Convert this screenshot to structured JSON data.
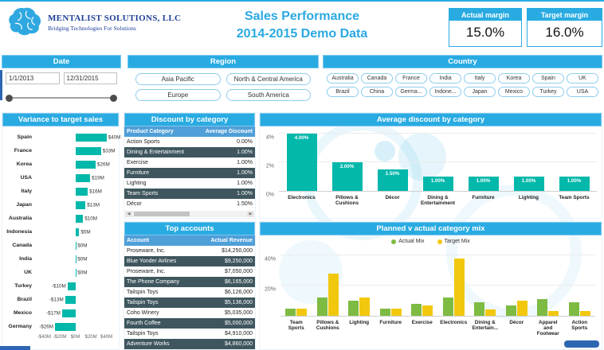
{
  "colors": {
    "accent": "#29ABE2",
    "title-blue": "#2BA9E1",
    "brand-navy": "#1C3E95",
    "teal": "#01B8AA",
    "table-header-blue": "#4F9FD8",
    "dark-row": "#3F565E",
    "actual-green": "#7DBB42",
    "target-yellow": "#F2C80F",
    "scroll-navy": "#2D66B1"
  },
  "branding": {
    "company": "MENTALIST SOLUTIONS, LLC",
    "tagline": "Bridging Technologies For Solutions"
  },
  "title": {
    "line1": "Sales Performance",
    "line2": "2014-2015 Demo Data"
  },
  "kpis": [
    {
      "label": "Actual margin",
      "value": "15.0%"
    },
    {
      "label": "Target margin",
      "value": "16.0%"
    }
  ],
  "filters": {
    "date": {
      "title": "Date",
      "start": "1/1/2013",
      "end": "12/31/2015"
    },
    "region": {
      "title": "Region",
      "options": [
        "Asia Pacific",
        "North & Central America",
        "Europe",
        "South America"
      ]
    },
    "country": {
      "title": "Country",
      "rows": [
        [
          "Australia",
          "Canada",
          "France",
          "India",
          "Italy",
          "Korea",
          "Spain",
          "UK"
        ],
        [
          "Brazil",
          "China",
          "Germa...",
          "Indone...",
          "Japan",
          "Mexico",
          "Turkey",
          "USA"
        ]
      ]
    }
  },
  "charts": {
    "variance": {
      "title": "Variance to target sales",
      "type": "bar",
      "rows": [
        {
          "country": "Spain",
          "value": 40,
          "label": "$40M"
        },
        {
          "country": "France",
          "value": 33,
          "label": "$33M"
        },
        {
          "country": "Korea",
          "value": 26,
          "label": "$26M"
        },
        {
          "country": "USA",
          "value": 19,
          "label": "$19M"
        },
        {
          "country": "Italy",
          "value": 16,
          "label": "$16M"
        },
        {
          "country": "Japan",
          "value": 13,
          "label": "$13M"
        },
        {
          "country": "Australia",
          "value": 10,
          "label": "$10M"
        },
        {
          "country": "Indonesia",
          "value": 5,
          "label": "$5M"
        },
        {
          "country": "Canada",
          "value": 0,
          "label": "$0M"
        },
        {
          "country": "India",
          "value": 0,
          "label": "$0M"
        },
        {
          "country": "UK",
          "value": 0,
          "label": "$0M"
        },
        {
          "country": "Turkey",
          "value": -10,
          "label": "-$10M"
        },
        {
          "country": "Brazil",
          "value": -13,
          "label": "-$13M"
        },
        {
          "country": "Mexico",
          "value": -17,
          "label": "-$17M"
        },
        {
          "country": "Germany",
          "value": -26,
          "label": "-$26M"
        }
      ],
      "axis_ticks": [
        {
          "label": "-$40M",
          "value": -40
        },
        {
          "label": "-$20M",
          "value": -20
        },
        {
          "label": "$0M",
          "value": 0
        },
        {
          "label": "$20M",
          "value": 20
        },
        {
          "label": "$40M",
          "value": 40
        }
      ]
    },
    "discount_table": {
      "title": "Discount by category",
      "columns": [
        "Product Category",
        "Average Discount"
      ],
      "rows": [
        [
          "Action Sports",
          "0.00%"
        ],
        [
          "Dining & Entertainment",
          "1.00%"
        ],
        [
          "Exercise",
          "1.00%"
        ],
        [
          "Furniture",
          "1.00%"
        ],
        [
          "Lighting",
          "1.00%"
        ],
        [
          "Team Sports",
          "1.00%"
        ],
        [
          "Décor",
          "1.50%"
        ]
      ]
    },
    "avg_discount": {
      "title": "Average discount by category",
      "type": "bar",
      "points": [
        {
          "category": "Electronics",
          "value": 4.0,
          "label": "4.00%"
        },
        {
          "category": "Pillows & Cushions",
          "value": 2.0,
          "label": "2.00%"
        },
        {
          "category": "Décor",
          "value": 1.5,
          "label": "1.50%"
        },
        {
          "category": "Dining & Entertainment",
          "value": 1.0,
          "label": "1.00%"
        },
        {
          "category": "Furniture",
          "value": 1.0,
          "label": "1.00%"
        },
        {
          "category": "Lighting",
          "value": 1.0,
          "label": "1.00%"
        },
        {
          "category": "Team Sports",
          "value": 1.0,
          "label": "1.00%"
        }
      ],
      "y_ticks": [
        {
          "label": "4%",
          "value": 4
        },
        {
          "label": "2%",
          "value": 2
        },
        {
          "label": "0%",
          "value": 0
        }
      ]
    },
    "top_accounts": {
      "title": "Top accounts",
      "columns": [
        "Account",
        "Actual Revenue"
      ],
      "rows": [
        [
          "Proseware, Inc.",
          "$14,250,000"
        ],
        [
          "Blue Yonder Airlines",
          "$9,250,000"
        ],
        [
          "Proseware, Inc.",
          "$7,050,000"
        ],
        [
          "The Phone Company",
          "$6,165,000"
        ],
        [
          "Tailspin Toys",
          "$6,126,000"
        ],
        [
          "Tailspin Toys",
          "$5,136,000"
        ],
        [
          "Coho Winery",
          "$5,035,000"
        ],
        [
          "Fourth Coffee",
          "$5,000,000"
        ],
        [
          "Tailspin Toys",
          "$4,910,000"
        ],
        [
          "Adventure Works",
          "$4,860,000"
        ]
      ]
    },
    "category_mix": {
      "title": "Planned v actual category mix",
      "type": "bar",
      "categories": [
        "Team Sports",
        "Pillows & Cushions",
        "Lighting",
        "Furniture",
        "Exercise",
        "Electronics",
        "Dining & Entertain...",
        "Décor",
        "Apparel and Footwear",
        "Action Sports"
      ],
      "series": [
        {
          "name": "Actual Mix",
          "color": "#7DBB42",
          "values": [
            5,
            12,
            10,
            5,
            8,
            12,
            9,
            7,
            11,
            9
          ]
        },
        {
          "name": "Target Mix",
          "color": "#F2C80F",
          "values": [
            5,
            28,
            12,
            5,
            7,
            38,
            4,
            10,
            3,
            3
          ]
        }
      ],
      "y_ticks": [
        {
          "label": "40%",
          "value": 40
        },
        {
          "label": "20%",
          "value": 20
        }
      ]
    }
  }
}
